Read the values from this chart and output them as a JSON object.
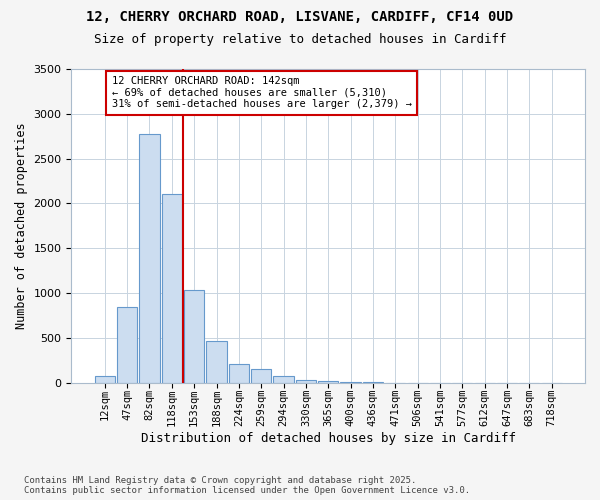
{
  "title1": "12, CHERRY ORCHARD ROAD, LISVANE, CARDIFF, CF14 0UD",
  "title2": "Size of property relative to detached houses in Cardiff",
  "xlabel": "Distribution of detached houses by size in Cardiff",
  "ylabel": "Number of detached properties",
  "categories": [
    "12sqm",
    "47sqm",
    "82sqm",
    "118sqm",
    "153sqm",
    "188sqm",
    "224sqm",
    "259sqm",
    "294sqm",
    "330sqm",
    "365sqm",
    "400sqm",
    "436sqm",
    "471sqm",
    "506sqm",
    "541sqm",
    "577sqm",
    "612sqm",
    "647sqm",
    "683sqm",
    "718sqm"
  ],
  "values": [
    75,
    850,
    2780,
    2100,
    1030,
    460,
    210,
    150,
    75,
    30,
    20,
    5,
    3,
    2,
    0,
    0,
    0,
    0,
    0,
    0,
    0
  ],
  "bar_color": "#ccddf0",
  "bar_edge_color": "#6699cc",
  "vline_color": "#cc0000",
  "vline_x_idx": 4,
  "annotation_title": "12 CHERRY ORCHARD ROAD: 142sqm",
  "annotation_line2": "← 69% of detached houses are smaller (5,310)",
  "annotation_line3": "31% of semi-detached houses are larger (2,379) →",
  "ylim": [
    0,
    3500
  ],
  "yticks": [
    0,
    500,
    1000,
    1500,
    2000,
    2500,
    3000,
    3500
  ],
  "footer1": "Contains HM Land Registry data © Crown copyright and database right 2025.",
  "footer2": "Contains public sector information licensed under the Open Government Licence v3.0.",
  "bg_color": "#f5f5f5",
  "plot_bg_color": "#ffffff",
  "grid_color": "#c8d4e0"
}
